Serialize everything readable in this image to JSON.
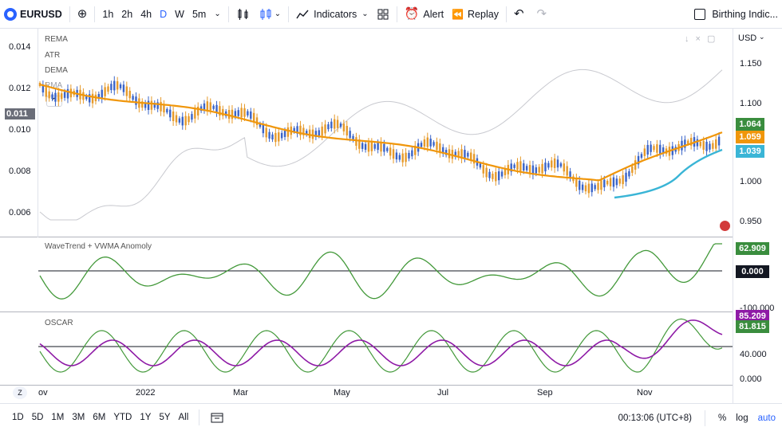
{
  "toolbar": {
    "symbol": "EURUSD",
    "intervals": [
      "1h",
      "2h",
      "4h",
      "D",
      "W",
      "5m"
    ],
    "indicators_label": "Indicators",
    "alert_label": "Alert",
    "replay_label": "Replay",
    "indicator_title": "Birthing Indic..."
  },
  "main_pane": {
    "labels": [
      "REMA",
      "ATR",
      "DEMA",
      "RMA"
    ],
    "left_axis_ticks": [
      "0.014",
      "0.012",
      "0.010",
      "0.008",
      "0.006"
    ],
    "left_tag": "0.011",
    "right_axis_currency": "USD",
    "right_axis_ticks": [
      "1.150",
      "1.100",
      "1.000",
      "0.950"
    ],
    "price_tags": {
      "green": "1.064",
      "orange": "1.059",
      "blue": "1.039"
    }
  },
  "wavetrend_pane": {
    "label": "WaveTrend + VWMA Anomoly",
    "tags": {
      "green": "62.909",
      "zero": "0.000"
    },
    "bottom_tick": "-100.000"
  },
  "oscar_pane": {
    "label": "OSCAR",
    "tags": {
      "purple": "85.209",
      "green": "81.815"
    },
    "ticks": [
      "40.000",
      "0.000"
    ]
  },
  "xaxis": {
    "ticks": [
      "ov",
      "2022",
      "Mar",
      "May",
      "Jul",
      "Sep",
      "Nov"
    ]
  },
  "bottombar": {
    "ranges": [
      "1D",
      "5D",
      "1M",
      "3M",
      "6M",
      "YTD",
      "1Y",
      "5Y",
      "All"
    ],
    "time": "00:13:06 (UTC+8)",
    "percent": "%",
    "log": "log",
    "auto": "auto"
  },
  "colors": {
    "accent": "#2962ff",
    "rema_orange": "#f0960a",
    "ma_blue": "#3ab5d6",
    "osc_green": "#43993a",
    "osc_purple": "#8e1aa6",
    "candle_up": "#3a64c8",
    "candle_down": "#e69a2a"
  }
}
